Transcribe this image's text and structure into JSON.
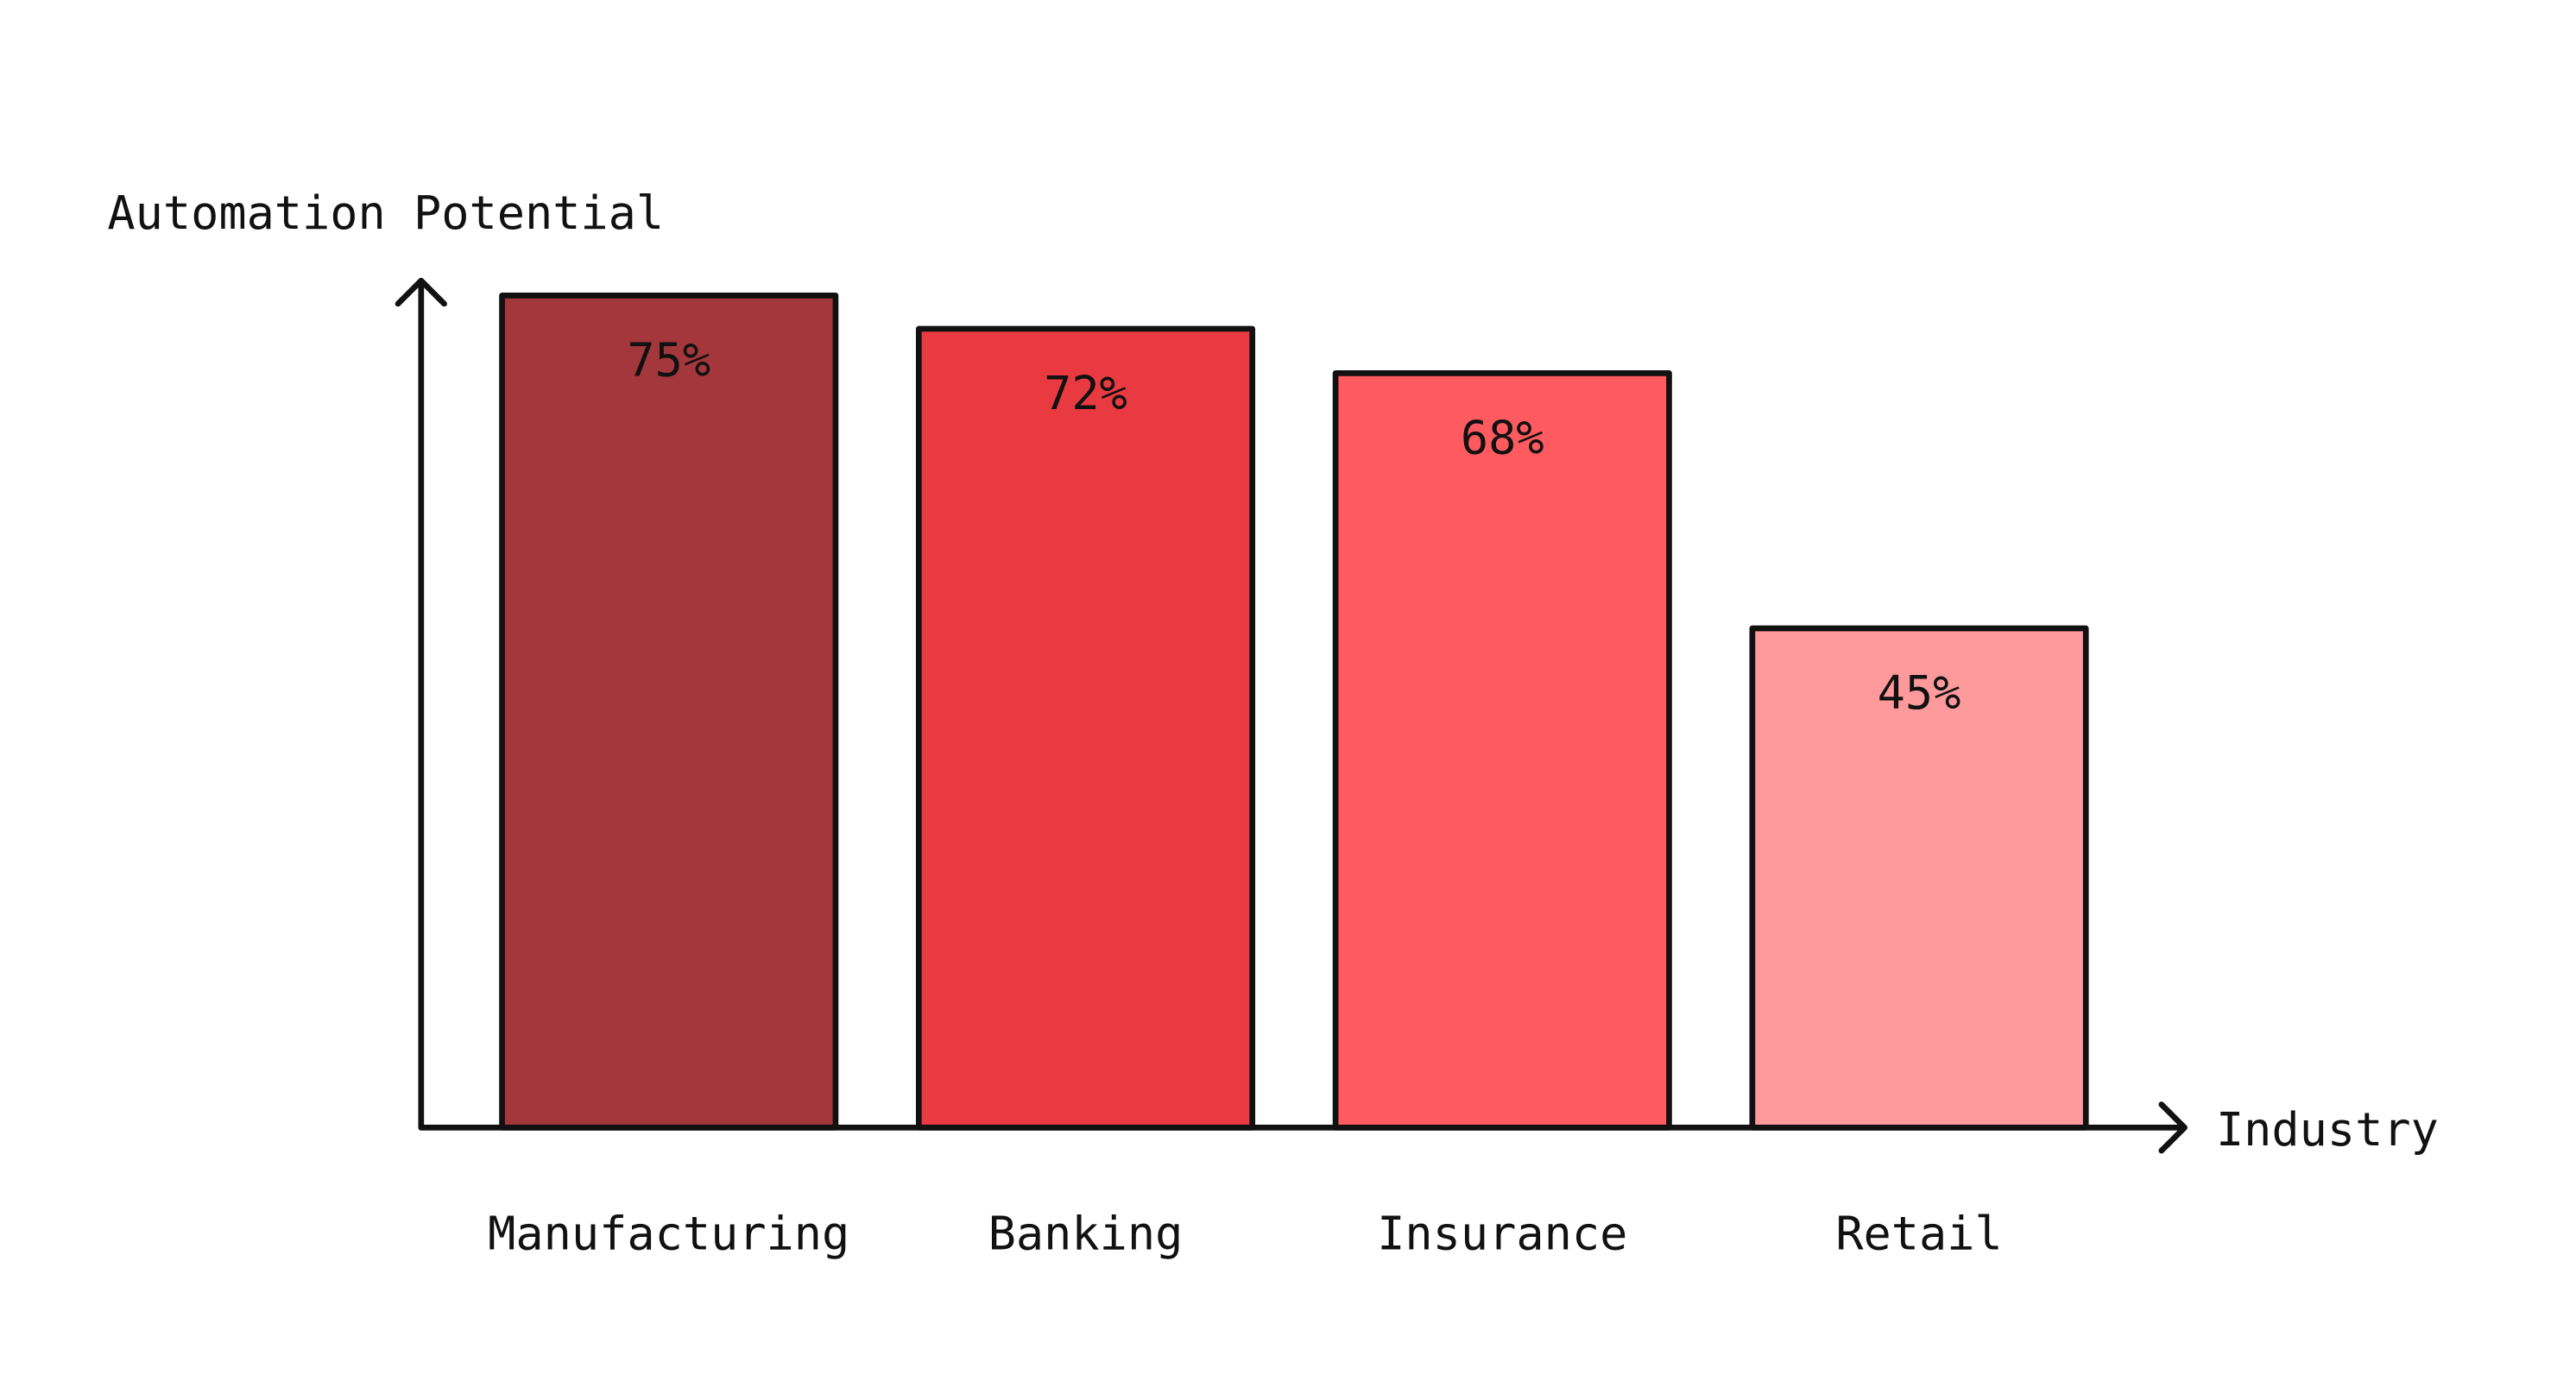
{
  "chart_data": {
    "type": "bar",
    "y_label": "Automation Potential",
    "x_label": "Industry",
    "categories": [
      "Manufacturing",
      "Banking",
      "Insurance",
      "Retail"
    ],
    "values": [
      75,
      72,
      68,
      45
    ],
    "value_labels": [
      "75%",
      "72%",
      "68%",
      "45%"
    ],
    "colors": [
      "#a3373c",
      "#e83a40",
      "#fe5a60",
      "#fe9a9c"
    ]
  }
}
